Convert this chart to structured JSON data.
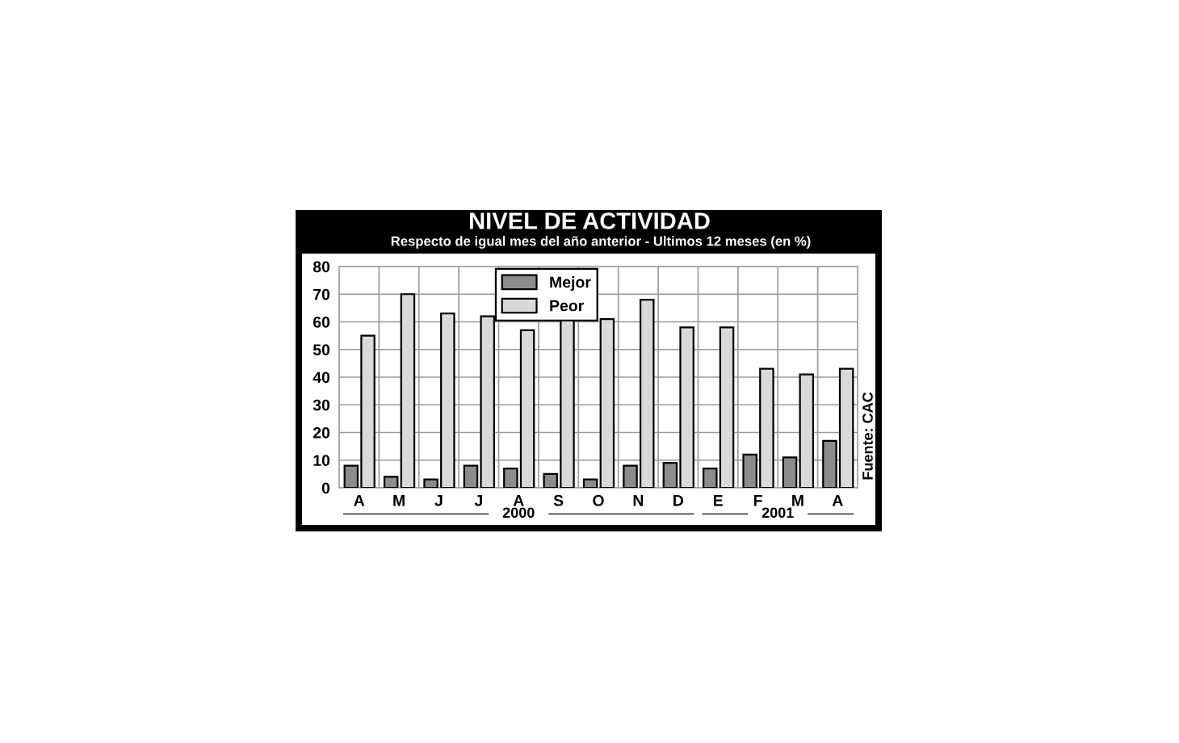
{
  "chart_data": {
    "type": "bar",
    "title": "NIVEL DE ACTIVIDAD",
    "subtitle": "Respecto de igual mes del año anterior - Ultimos 12 meses (en %)",
    "categories": [
      "A",
      "M",
      "J",
      "J",
      "A",
      "S",
      "O",
      "N",
      "D",
      "E",
      "F",
      "M",
      "A"
    ],
    "series": [
      {
        "name": "Mejor",
        "color": "#8c8c8c",
        "values": [
          8,
          4,
          3,
          8,
          7,
          5,
          3,
          8,
          9,
          7,
          12,
          11,
          17
        ]
      },
      {
        "name": "Peor",
        "color": "#d9d9d9",
        "values": [
          55,
          70,
          63,
          62,
          57,
          62,
          61,
          68,
          58,
          58,
          43,
          41,
          43
        ]
      }
    ],
    "ylim": [
      0,
      80
    ],
    "yticks": [
      0,
      10,
      20,
      30,
      40,
      50,
      60,
      70,
      80
    ],
    "grid": true,
    "legend": "top",
    "annotations": [
      "2000",
      "2001",
      "Fuente: CAC"
    ]
  }
}
